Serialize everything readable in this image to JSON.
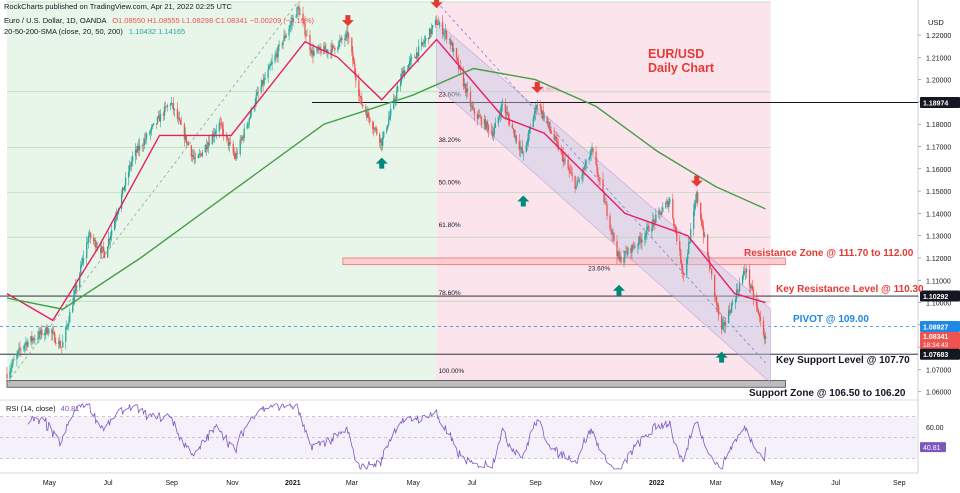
{
  "header": {
    "published": "RockCharts published on TradingView.com, Apr 21, 2022 02:25 UTC",
    "symbol_line": "Euro / U.S. Dollar, 1D, OANDA",
    "ohlc": "O1.08550  H1.08555  L1.08298  C1.08341  −0.00209 (−0.19%)",
    "sma_line": "20-50-200-SMA (close, 20, 50, 200)",
    "sma_values": "1.10432  1.14165",
    "currency": "USD"
  },
  "title": {
    "line1": "EUR/USD",
    "line2": "Daily Chart",
    "color": "#e53935"
  },
  "annotations": {
    "resistance_zone": "Resistance Zone @ 111.70 to 112.00",
    "key_resistance": "Key Resistance Level @ 110.30",
    "pivot": "PIVOT @ 109.00",
    "key_support": "Key Support Level @ 107.70",
    "support_zone": "Support Zone  @ 106.50 to 106.20"
  },
  "fib_labels": [
    "100.00%",
    "78.60%",
    "23.60%",
    "38.20%",
    "50.00%",
    "61.80%",
    "78.60%",
    "100.00%",
    "23.60%"
  ],
  "price_tags": {
    "level_1": "1.18974",
    "level_2": "1.10292",
    "level_3": "1.08927",
    "last_price": "1.08341",
    "countdown": "18:34:43",
    "level_4": "1.07683"
  },
  "rsi": {
    "label": "RSI (14, close)",
    "value": "40.81"
  },
  "colors": {
    "sma20": "#e91e63",
    "sma200": "#43a047",
    "bull": "#26a69a",
    "bear": "#ef5350",
    "rsi": "#7e57c2",
    "green_zone": "#e8f5e9",
    "pink_zone": "#fce4ec",
    "channel": "#c5cae9"
  },
  "chart_data": {
    "type": "candlestick",
    "title": "EUR/USD Daily Chart",
    "ylim": [
      1.05853,
      1.23214
    ],
    "y_ticks": [
      "1.22000",
      "1.21000",
      "1.20000",
      "1.19000",
      "1.18000",
      "1.17000",
      "1.16000",
      "1.15000",
      "1.14000",
      "1.13000",
      "1.12000",
      "1.11000",
      "1.10000",
      "1.09000",
      "1.08000",
      "1.07000",
      "1.06000"
    ],
    "x_ticks": [
      "May",
      "Jul",
      "Sep",
      "Nov",
      "2021",
      "Mar",
      "May",
      "Jul",
      "Sep",
      "Nov",
      "2022",
      "Mar",
      "May",
      "Jul",
      "Sep"
    ],
    "waypoints": [
      {
        "date": "2020-03-20",
        "price": 1.068
      },
      {
        "date": "2020-04-05",
        "price": 1.081
      },
      {
        "date": "2020-04-30",
        "price": 1.088
      },
      {
        "date": "2020-05-14",
        "price": 1.08
      },
      {
        "date": "2020-06-10",
        "price": 1.13
      },
      {
        "date": "2020-06-26",
        "price": 1.122
      },
      {
        "date": "2020-07-24",
        "price": 1.165
      },
      {
        "date": "2020-08-31",
        "price": 1.19
      },
      {
        "date": "2020-09-25",
        "price": 1.163
      },
      {
        "date": "2020-10-19",
        "price": 1.18
      },
      {
        "date": "2020-11-04",
        "price": 1.165
      },
      {
        "date": "2020-11-25",
        "price": 1.192
      },
      {
        "date": "2021-01-06",
        "price": 1.232
      },
      {
        "date": "2021-01-20",
        "price": 1.212
      },
      {
        "date": "2021-02-10",
        "price": 1.214
      },
      {
        "date": "2021-02-25",
        "price": 1.22
      },
      {
        "date": "2021-03-10",
        "price": 1.19
      },
      {
        "date": "2021-03-31",
        "price": 1.172
      },
      {
        "date": "2021-04-21",
        "price": 1.203
      },
      {
        "date": "2021-05-10",
        "price": 1.215
      },
      {
        "date": "2021-05-25",
        "price": 1.226
      },
      {
        "date": "2021-06-07",
        "price": 1.218
      },
      {
        "date": "2021-06-30",
        "price": 1.186
      },
      {
        "date": "2021-07-21",
        "price": 1.176
      },
      {
        "date": "2021-07-30",
        "price": 1.189
      },
      {
        "date": "2021-08-20",
        "price": 1.166
      },
      {
        "date": "2021-09-03",
        "price": 1.19
      },
      {
        "date": "2021-10-12",
        "price": 1.152
      },
      {
        "date": "2021-10-28",
        "price": 1.168
      },
      {
        "date": "2021-11-24",
        "price": 1.119
      },
      {
        "date": "2021-12-15",
        "price": 1.128
      },
      {
        "date": "2022-01-14",
        "price": 1.146
      },
      {
        "date": "2022-01-28",
        "price": 1.112
      },
      {
        "date": "2022-02-10",
        "price": 1.148
      },
      {
        "date": "2022-03-07",
        "price": 1.087
      },
      {
        "date": "2022-03-31",
        "price": 1.115
      },
      {
        "date": "2022-04-20",
        "price": 1.0834
      }
    ],
    "sma20": [
      [
        "2020-03-20",
        1.104
      ],
      [
        "2020-05-05",
        1.092
      ],
      [
        "2020-06-20",
        1.125
      ],
      [
        "2020-08-20",
        1.175
      ],
      [
        "2020-10-31",
        1.175
      ],
      [
        "2021-01-13",
        1.217
      ],
      [
        "2021-02-15",
        1.21
      ],
      [
        "2021-03-31",
        1.191
      ],
      [
        "2021-05-25",
        1.218
      ],
      [
        "2021-07-31",
        1.183
      ],
      [
        "2021-09-10",
        1.176
      ],
      [
        "2021-11-30",
        1.14
      ],
      [
        "2022-02-01",
        1.13
      ],
      [
        "2022-03-20",
        1.104
      ],
      [
        "2022-04-20",
        1.1
      ]
    ],
    "sma200": [
      [
        "2020-03-20",
        1.102
      ],
      [
        "2020-05-15",
        1.097
      ],
      [
        "2020-08-01",
        1.12
      ],
      [
        "2020-11-01",
        1.15
      ],
      [
        "2021-02-01",
        1.18
      ],
      [
        "2021-05-01",
        1.193
      ],
      [
        "2021-07-01",
        1.205
      ],
      [
        "2021-09-01",
        1.2
      ],
      [
        "2021-11-01",
        1.188
      ],
      [
        "2022-01-01",
        1.168
      ],
      [
        "2022-03-01",
        1.152
      ],
      [
        "2022-04-20",
        1.142
      ]
    ],
    "horizontal_levels": [
      1.18974,
      1.10292,
      1.08927,
      1.07683
    ],
    "resistance_zone": [
      1.117,
      1.12
    ],
    "support_zone": [
      1.062,
      1.065
    ],
    "channel": {
      "upper": [
        [
          "2021-05-25",
          1.226
        ],
        [
          "2022-04-25",
          1.097
        ]
      ],
      "lower": [
        [
          "2021-05-25",
          1.197
        ],
        [
          "2022-04-25",
          1.064
        ]
      ]
    },
    "fib_swing": {
      "start": [
        "2020-03-20",
        1.064
      ],
      "end": [
        "2021-01-06",
        1.2349
      ]
    },
    "zones": {
      "green": [
        "2020-03-20",
        "2021-05-25"
      ],
      "pink": [
        "2021-05-25",
        "2022-04-25"
      ]
    },
    "arrows_down": [
      [
        "2021-02-25",
        1.224
      ],
      [
        "2021-05-25",
        1.232
      ],
      [
        "2021-09-03",
        1.194
      ],
      [
        "2022-02-10",
        1.152
      ]
    ],
    "arrows_up": [
      [
        "2021-03-31",
        1.165
      ],
      [
        "2021-08-20",
        1.148
      ],
      [
        "2021-11-24",
        1.108
      ],
      [
        "2022-03-07",
        1.078
      ]
    ],
    "rsi_levels": [
      70,
      50,
      30
    ],
    "rsi_last": 40.81,
    "rsi_ticks": [
      60,
      40
    ]
  }
}
